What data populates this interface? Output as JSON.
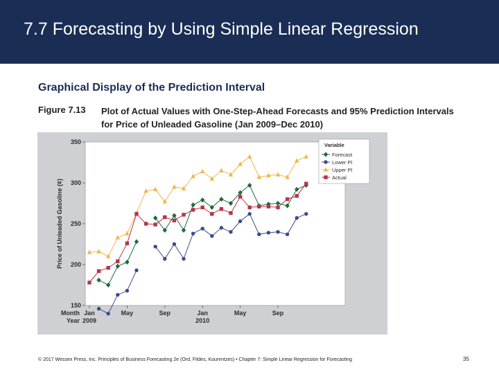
{
  "slide": {
    "title": "7.7 Forecasting by Using Simple Linear Regression",
    "subtitle": "Graphical Display of the Prediction Interval",
    "figure_label": "Figure 7.13",
    "figure_caption": "Plot of Actual Values with One-Step-Ahead Forecasts and 95% Prediction Intervals for Price of Unleaded Gasoline (Jan 2009–Dec 2010)",
    "footer": "© 2017 Wessex Press, Inc. Principles of Business Forecasting 2e (Ord, Fildes, Kourentzes) • Chapter 7: Simple Linear Regression for Forecasting",
    "page_number": "35"
  },
  "colors": {
    "forecast": "#1f6b3a",
    "lower": "#3b4a8c",
    "upper": "#f0b64c",
    "actual": "#b5354a",
    "plot_bg": "#ffffff",
    "frame_bg": "#cfd0d4"
  },
  "chart_data": {
    "type": "line",
    "title": "",
    "xlabel": "",
    "ylabel": "Price of Unleaded Gasoline (¢)",
    "ylim": [
      150,
      350
    ],
    "yticks": [
      150,
      200,
      250,
      300,
      350
    ],
    "x_header": {
      "month": "Month",
      "year": "Year"
    },
    "x_ticks": [
      {
        "index": 0,
        "month": "Jan",
        "year": "2009"
      },
      {
        "index": 4,
        "month": "May",
        "year": ""
      },
      {
        "index": 8,
        "month": "Sep",
        "year": ""
      },
      {
        "index": 12,
        "month": "Jan",
        "year": "2010"
      },
      {
        "index": 16,
        "month": "May",
        "year": ""
      },
      {
        "index": 20,
        "month": "Sep",
        "year": ""
      }
    ],
    "legend": {
      "title": "Variable",
      "position": "top-right",
      "entries": [
        "Forecast",
        "Lower PI",
        "Upper PI",
        "Actual"
      ]
    },
    "series": [
      {
        "name": "Forecast",
        "marker": "diamond",
        "values": [
          null,
          181,
          175,
          198,
          203,
          228,
          null,
          257,
          242,
          260,
          242,
          273,
          279,
          270,
          280,
          275,
          288,
          297,
          272,
          274,
          275,
          272,
          292,
          297
        ]
      },
      {
        "name": "Lower PI",
        "marker": "circle",
        "values": [
          null,
          146,
          140,
          163,
          168,
          193,
          null,
          222,
          207,
          225,
          207,
          238,
          244,
          235,
          245,
          240,
          253,
          262,
          237,
          239,
          240,
          237,
          257,
          262
        ]
      },
      {
        "name": "Upper PI",
        "marker": "triangle",
        "values": [
          215,
          216,
          210,
          233,
          238,
          263,
          290,
          292,
          277,
          295,
          293,
          308,
          314,
          305,
          315,
          310,
          323,
          332,
          307,
          309,
          310,
          307,
          327,
          332
        ]
      },
      {
        "name": "Actual",
        "marker": "square",
        "values": [
          178,
          192,
          196,
          204,
          226,
          262,
          250,
          249,
          258,
          254,
          261,
          267,
          270,
          262,
          268,
          263,
          283,
          270,
          271,
          271,
          270,
          280,
          284,
          299
        ]
      }
    ]
  }
}
